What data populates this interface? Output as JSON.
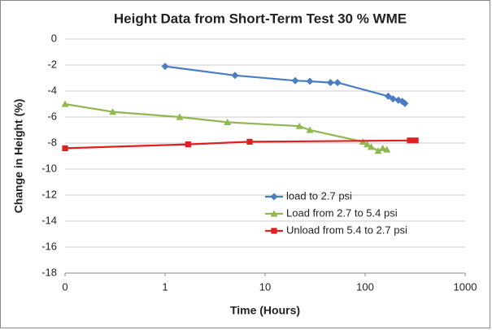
{
  "chart_data": {
    "type": "line",
    "title": "Height Data from Short-Term Test 30 % WME",
    "x_label": "Time (Hours)",
    "y_label": "Change in Height (%)",
    "x_log": true,
    "grid": true,
    "legend": "right",
    "xlim": [
      0.1,
      1000
    ],
    "xticks": [
      {
        "value": 0.1,
        "label": "0"
      },
      1,
      10,
      100,
      1000
    ],
    "ylim": [
      -18,
      0
    ],
    "yticks": [
      0,
      -2,
      -4,
      -6,
      -8,
      -10,
      -12,
      -14,
      -16,
      -18
    ],
    "series": [
      {
        "name": "load to 2.7 psi",
        "color": "#4a7ec2",
        "marker": "diamond",
        "x": [
          1,
          5,
          20,
          28,
          45,
          53,
          170,
          190,
          215,
          235,
          250
        ],
        "values": [
          -2.1,
          -2.8,
          -3.2,
          -3.25,
          -3.35,
          -3.35,
          -4.4,
          -4.6,
          -4.7,
          -4.8,
          -4.95
        ]
      },
      {
        "name": "Load from 2.7 to 5.4 psi",
        "color": "#8fb850",
        "marker": "triangle",
        "x": [
          0.1,
          0.3,
          1.4,
          4.2,
          22,
          28,
          95,
          105,
          115,
          135,
          150,
          165
        ],
        "values": [
          -5.0,
          -5.6,
          -6.0,
          -6.4,
          -6.7,
          -7.0,
          -7.9,
          -8.1,
          -8.3,
          -8.6,
          -8.4,
          -8.5
        ]
      },
      {
        "name": "Unload from 5.4 to 2.7 psi",
        "color": "#e02020",
        "marker": "square",
        "x": [
          0.1,
          1.7,
          7,
          280,
          320
        ],
        "values": [
          -8.4,
          -8.1,
          -7.9,
          -7.8,
          -7.8
        ]
      }
    ]
  }
}
